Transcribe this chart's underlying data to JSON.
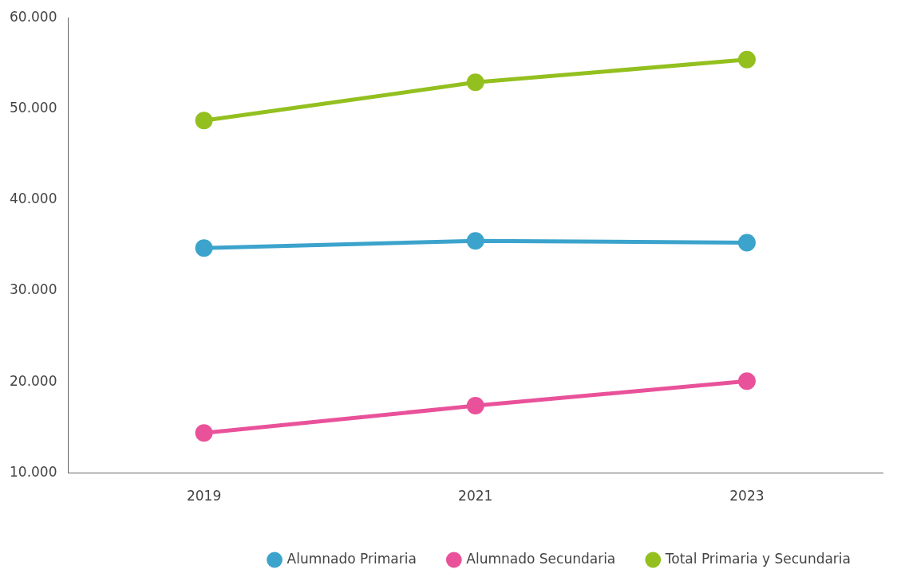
{
  "chart_data": {
    "type": "line",
    "categories": [
      "2019",
      "2021",
      "2023"
    ],
    "series": [
      {
        "name": "Alumnado Primaria",
        "color": "#3ba3cc",
        "values": [
          34700,
          35500,
          35300
        ]
      },
      {
        "name": "Alumnado Secundaria",
        "color": "#e9529a",
        "values": [
          14400,
          17400,
          20100
        ]
      },
      {
        "name": "Total Primaria y Secundaria",
        "color": "#93c01f",
        "values": [
          48700,
          52900,
          55400
        ]
      }
    ],
    "ylim": [
      10000,
      60000
    ],
    "yticks": [
      {
        "value": 10000,
        "label": "10.000"
      },
      {
        "value": 20000,
        "label": "20.000"
      },
      {
        "value": 30000,
        "label": "30.000"
      },
      {
        "value": 40000,
        "label": "40.000"
      },
      {
        "value": 50000,
        "label": "50.000"
      },
      {
        "value": 60000,
        "label": "60.000"
      }
    ],
    "grid": false,
    "legend": "bottom right",
    "marker": "circle",
    "line_style": "solid"
  }
}
